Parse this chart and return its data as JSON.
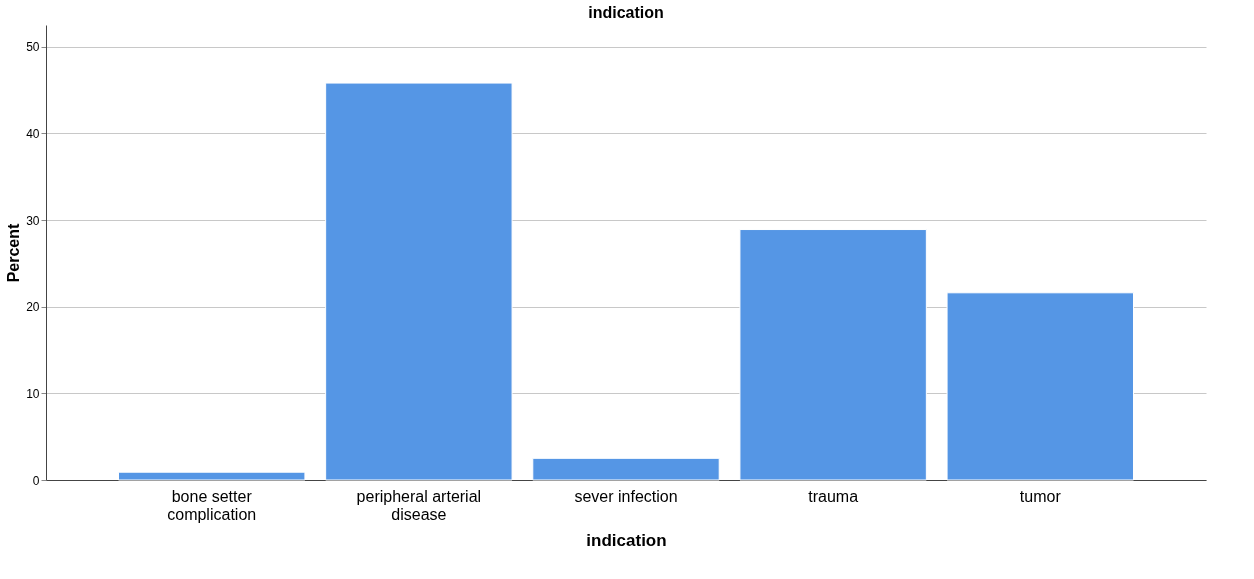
{
  "chart_data": {
    "type": "bar",
    "title": "indication",
    "xlabel": "indication",
    "ylabel": "Percent",
    "categories": [
      "bone setter complication",
      "peripheral arterial disease",
      "sever infection",
      "trauma",
      "tumor"
    ],
    "values": [
      0.9,
      45.8,
      2.5,
      28.9,
      21.6
    ],
    "color": "#5596e5",
    "ylim": [
      0,
      52.5
    ],
    "yticks": [
      0,
      10,
      20,
      30,
      40,
      50
    ],
    "grid": "y"
  }
}
